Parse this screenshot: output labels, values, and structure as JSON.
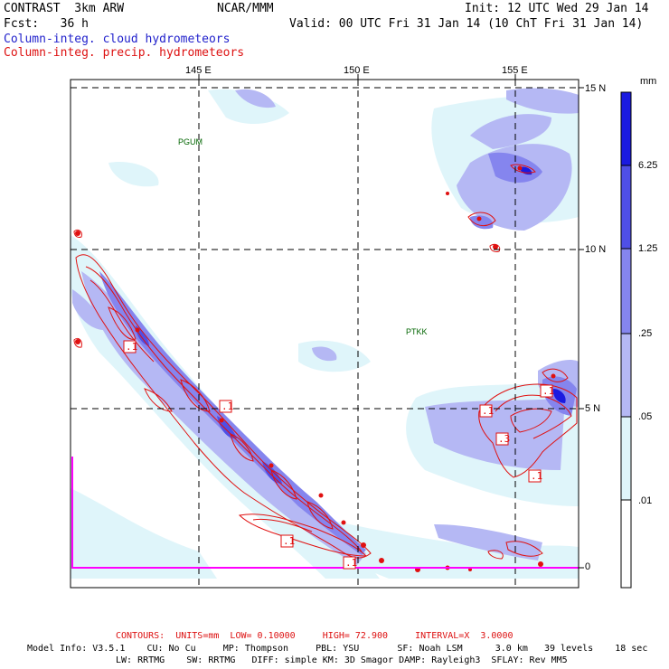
{
  "header": {
    "model": "CONTRAST  3km ARW",
    "org": "NCAR/MMM",
    "init": "Init: 12 UTC Wed 29 Jan 14",
    "fcst": "Fcst:   36 h",
    "valid": "Valid: 00 UTC Fri 31 Jan 14 (10 ChT Fri 31 Jan 14)",
    "field_cloud": "Column-integ. cloud hydrometeors",
    "field_precip": "Column-integ. precip. hydrometeors"
  },
  "colors": {
    "cloud_text": "#2222cc",
    "precip_text": "#dd1111",
    "precip_contour": "#e01010",
    "grid": "#000000",
    "pink_line": "#ff00ff"
  },
  "axes": {
    "lon_labels": [
      "145 E",
      "150 E",
      "155 E"
    ],
    "lat_labels": [
      "15 N",
      "10 N",
      "5 N",
      "0"
    ]
  },
  "stations": [
    "PGUM",
    "PTKK"
  ],
  "colorbar": {
    "unit": "mm",
    "labels": [
      "6.25",
      "1.25",
      ".25",
      ".05",
      ".01"
    ],
    "colors": [
      "#1a1ae0",
      "#4f4fe6",
      "#8585ee",
      "#b5b8f4",
      "#dff5fa",
      "#ffffff"
    ]
  },
  "contour_labels": [
    ".1",
    ".1",
    ".1",
    ".1",
    ".1",
    ".3",
    ".1",
    ".1"
  ],
  "footer": {
    "contours": "CONTOURS:  UNITS=mm  LOW= 0.10000     HIGH= 72.900     INTERVAL=X  3.0000",
    "model_info_1": "Model Info: V3.5.1    CU: No Cu     MP: Thompson     PBL: YSU       SF: Noah LSM      3.0 km   39 levels    18 sec",
    "model_info_2": "LW: RRTMG    SW: RRTMG   DIFF: simple KM: 3D Smagor DAMP: Rayleigh3  SFLAY: Rev MM5"
  }
}
